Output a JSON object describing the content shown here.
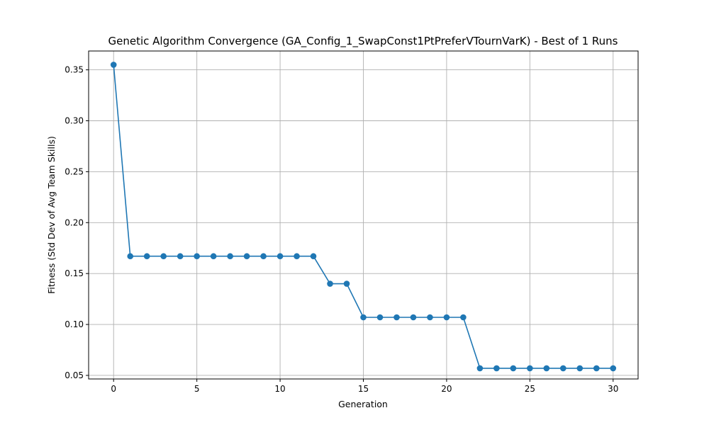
{
  "chart_data": {
    "type": "line",
    "title": "Genetic Algorithm Convergence (GA_Config_1_SwapConst1PtPreferVTournVarK) - Best of 1 Runs",
    "xlabel": "Generation",
    "ylabel": "Fitness (Std Dev of Avg Team Skills)",
    "xlim": [
      -1.5,
      31.5
    ],
    "ylim": [
      0.0465,
      0.3685
    ],
    "xticks": [
      0,
      5,
      10,
      15,
      20,
      25,
      30
    ],
    "yticks": [
      0.05,
      0.1,
      0.15,
      0.2,
      0.25,
      0.3,
      0.35
    ],
    "ytick_labels": [
      "0.05",
      "0.10",
      "0.15",
      "0.20",
      "0.25",
      "0.30",
      "0.35"
    ],
    "grid": true,
    "marker": "circle",
    "color": "#1f77b4",
    "x": [
      0,
      1,
      2,
      3,
      4,
      5,
      6,
      7,
      8,
      9,
      10,
      11,
      12,
      13,
      14,
      15,
      16,
      17,
      18,
      19,
      20,
      21,
      22,
      23,
      24,
      25,
      26,
      27,
      28,
      29,
      30
    ],
    "y": [
      0.355,
      0.167,
      0.167,
      0.167,
      0.167,
      0.167,
      0.167,
      0.167,
      0.167,
      0.167,
      0.167,
      0.167,
      0.167,
      0.14,
      0.14,
      0.107,
      0.107,
      0.107,
      0.107,
      0.107,
      0.107,
      0.107,
      0.057,
      0.057,
      0.057,
      0.057,
      0.057,
      0.057,
      0.057,
      0.057,
      0.057
    ]
  }
}
